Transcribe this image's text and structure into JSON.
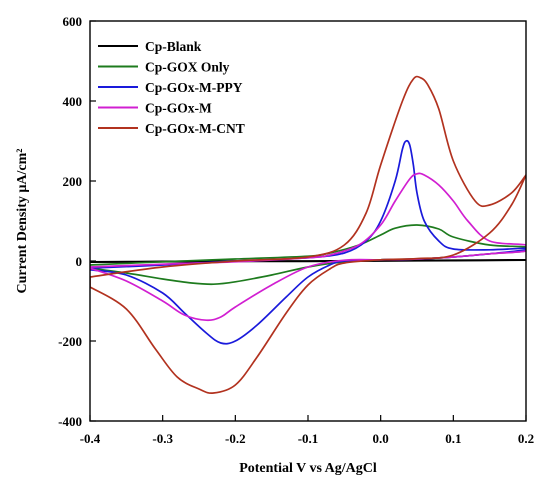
{
  "chart_data": {
    "type": "line",
    "xlabel": "Potential V vs Ag/AgCl",
    "ylabel": "Current Density µA/cm²",
    "xlim": [
      -0.4,
      0.2
    ],
    "ylim": [
      -400,
      600
    ],
    "x_ticks": [
      -0.4,
      -0.3,
      -0.2,
      -0.1,
      0.0,
      0.1,
      0.2
    ],
    "x_tick_labels": [
      "-0.4",
      "-0.3",
      "-0.2",
      "-0.1",
      "0.0",
      "0.1",
      "0.2"
    ],
    "y_ticks": [
      -400,
      -200,
      0,
      200,
      400,
      600
    ],
    "y_tick_labels": [
      "-400",
      "-200",
      "0",
      "200",
      "400",
      "600"
    ],
    "grid": false,
    "legend_position": "top-left",
    "series": [
      {
        "name": "Cp-Blank",
        "color": "#000000",
        "points": [
          [
            -0.4,
            -3
          ],
          [
            -0.3,
            -2
          ],
          [
            -0.2,
            -1
          ],
          [
            -0.1,
            -1
          ],
          [
            0.0,
            0
          ],
          [
            0.1,
            1
          ],
          [
            0.2,
            2
          ],
          [
            0.2,
            3
          ],
          [
            0.1,
            2
          ],
          [
            0.0,
            1
          ],
          [
            -0.1,
            0
          ],
          [
            -0.2,
            0
          ],
          [
            -0.3,
            -1
          ],
          [
            -0.4,
            -2
          ]
        ]
      },
      {
        "name": "Cp-GOX Only",
        "color": "#1e7b1e",
        "points": [
          [
            -0.4,
            -18
          ],
          [
            -0.35,
            -30
          ],
          [
            -0.3,
            -45
          ],
          [
            -0.26,
            -55
          ],
          [
            -0.23,
            -58
          ],
          [
            -0.2,
            -52
          ],
          [
            -0.15,
            -35
          ],
          [
            -0.1,
            -15
          ],
          [
            -0.05,
            -2
          ],
          [
            0.0,
            3
          ],
          [
            0.05,
            5
          ],
          [
            0.1,
            10
          ],
          [
            0.15,
            18
          ],
          [
            0.2,
            25
          ],
          [
            0.2,
            35
          ],
          [
            0.15,
            40
          ],
          [
            0.1,
            60
          ],
          [
            0.08,
            80
          ],
          [
            0.05,
            90
          ],
          [
            0.02,
            82
          ],
          [
            0.0,
            65
          ],
          [
            -0.03,
            40
          ],
          [
            -0.07,
            20
          ],
          [
            -0.1,
            12
          ],
          [
            -0.2,
            5
          ],
          [
            -0.3,
            -2
          ],
          [
            -0.4,
            -10
          ]
        ]
      },
      {
        "name": "Cp-GOx-M-PPY",
        "color": "#1a1adb",
        "points": [
          [
            -0.4,
            -22
          ],
          [
            -0.35,
            -35
          ],
          [
            -0.3,
            -80
          ],
          [
            -0.27,
            -130
          ],
          [
            -0.24,
            -180
          ],
          [
            -0.22,
            -205
          ],
          [
            -0.2,
            -200
          ],
          [
            -0.17,
            -160
          ],
          [
            -0.13,
            -90
          ],
          [
            -0.1,
            -40
          ],
          [
            -0.07,
            -10
          ],
          [
            -0.05,
            0
          ],
          [
            0.0,
            3
          ],
          [
            0.05,
            5
          ],
          [
            0.1,
            10
          ],
          [
            0.15,
            18
          ],
          [
            0.2,
            28
          ],
          [
            0.2,
            32
          ],
          [
            0.15,
            28
          ],
          [
            0.1,
            30
          ],
          [
            0.08,
            50
          ],
          [
            0.06,
            100
          ],
          [
            0.05,
            170
          ],
          [
            0.045,
            240
          ],
          [
            0.04,
            290
          ],
          [
            0.035,
            300
          ],
          [
            0.03,
            280
          ],
          [
            0.02,
            200
          ],
          [
            0.0,
            100
          ],
          [
            -0.02,
            50
          ],
          [
            -0.05,
            20
          ],
          [
            -0.1,
            8
          ],
          [
            -0.2,
            0
          ],
          [
            -0.3,
            -10
          ],
          [
            -0.4,
            -18
          ]
        ]
      },
      {
        "name": "Cp-GOx-M",
        "color": "#d11fd1",
        "points": [
          [
            -0.4,
            -18
          ],
          [
            -0.35,
            -50
          ],
          [
            -0.3,
            -100
          ],
          [
            -0.27,
            -135
          ],
          [
            -0.24,
            -148
          ],
          [
            -0.22,
            -140
          ],
          [
            -0.2,
            -115
          ],
          [
            -0.15,
            -60
          ],
          [
            -0.1,
            -15
          ],
          [
            -0.05,
            2
          ],
          [
            0.0,
            3
          ],
          [
            0.05,
            5
          ],
          [
            0.1,
            10
          ],
          [
            0.15,
            18
          ],
          [
            0.2,
            25
          ],
          [
            0.2,
            40
          ],
          [
            0.15,
            50
          ],
          [
            0.12,
            100
          ],
          [
            0.1,
            150
          ],
          [
            0.08,
            190
          ],
          [
            0.06,
            215
          ],
          [
            0.05,
            218
          ],
          [
            0.04,
            205
          ],
          [
            0.02,
            150
          ],
          [
            0.0,
            90
          ],
          [
            -0.03,
            40
          ],
          [
            -0.07,
            15
          ],
          [
            -0.1,
            8
          ],
          [
            -0.2,
            -2
          ],
          [
            -0.3,
            -8
          ],
          [
            -0.4,
            -15
          ]
        ]
      },
      {
        "name": "Cp-GOx-M-CNT",
        "color": "#b2321f",
        "points": [
          [
            -0.4,
            -65
          ],
          [
            -0.35,
            -120
          ],
          [
            -0.31,
            -220
          ],
          [
            -0.28,
            -290
          ],
          [
            -0.25,
            -320
          ],
          [
            -0.23,
            -330
          ],
          [
            -0.2,
            -310
          ],
          [
            -0.17,
            -240
          ],
          [
            -0.13,
            -130
          ],
          [
            -0.1,
            -60
          ],
          [
            -0.07,
            -20
          ],
          [
            -0.05,
            -5
          ],
          [
            0.0,
            3
          ],
          [
            0.05,
            6
          ],
          [
            0.1,
            15
          ],
          [
            0.15,
            70
          ],
          [
            0.18,
            140
          ],
          [
            0.2,
            215
          ],
          [
            0.2,
            215
          ],
          [
            0.18,
            170
          ],
          [
            0.15,
            140
          ],
          [
            0.13,
            150
          ],
          [
            0.1,
            250
          ],
          [
            0.08,
            380
          ],
          [
            0.065,
            440
          ],
          [
            0.055,
            458
          ],
          [
            0.045,
            455
          ],
          [
            0.03,
            400
          ],
          [
            0.0,
            240
          ],
          [
            -0.02,
            120
          ],
          [
            -0.05,
            40
          ],
          [
            -0.1,
            10
          ],
          [
            -0.2,
            0
          ],
          [
            -0.3,
            -15
          ],
          [
            -0.4,
            -40
          ]
        ]
      }
    ]
  }
}
